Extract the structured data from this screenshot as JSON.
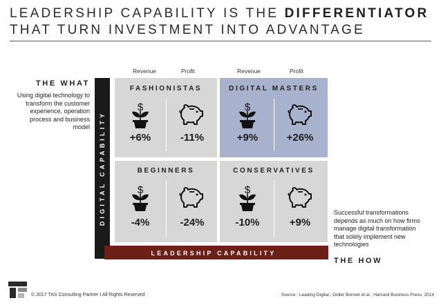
{
  "title": {
    "line1_prefix": "LEADERSHIP CAPABILITY IS THE ",
    "line1_bold": "DIFFERENTIATOR",
    "line2": "THAT TURN INVESTMENT INTO ADVANTAGE"
  },
  "what": {
    "heading": "THE WHAT",
    "text": "Using digital technology to transform the customer experience, operation process and business model"
  },
  "how": {
    "heading": "THE HOW",
    "text": "Successful transformations depends as much on how firms manage digital transformation that solely implement new technologies"
  },
  "column_headers": {
    "left_revenue": "Revenue",
    "left_profit": "Profit",
    "right_revenue": "Revenue",
    "right_profit": "Profit"
  },
  "axes": {
    "vertical": "DIGITAL CAPABILITY",
    "horizontal": "LEADERSHIP CAPABILITY"
  },
  "quadrants": {
    "fashionistas": {
      "name": "FASHIONISTAS",
      "revenue": "+6%",
      "profit": "-11%"
    },
    "digital_masters": {
      "name": "DIGITAL MASTERS",
      "revenue": "+9%",
      "profit": "+26%"
    },
    "beginners": {
      "name": "BEGINNERS",
      "revenue": "-4%",
      "profit": "-24%"
    },
    "conservatives": {
      "name": "CONSERVATIVES",
      "revenue": "-10%",
      "profit": "+9%"
    }
  },
  "colors": {
    "quadrant_grey": "#d7d7d7",
    "quadrant_highlight": "#a8b2cc",
    "leadership_bar": "#6b1f17",
    "digital_bar": "#1a1a1a"
  },
  "icons": {
    "revenue": "money-plant-icon",
    "profit": "piggy-bank-icon"
  },
  "footer": {
    "left": "© 2017 TAS Consulting Partner  I  All Rights Reserved",
    "right": "Source : Leading Digital , Didier Bonnet et.al , Harvard Business Press, 2014"
  }
}
